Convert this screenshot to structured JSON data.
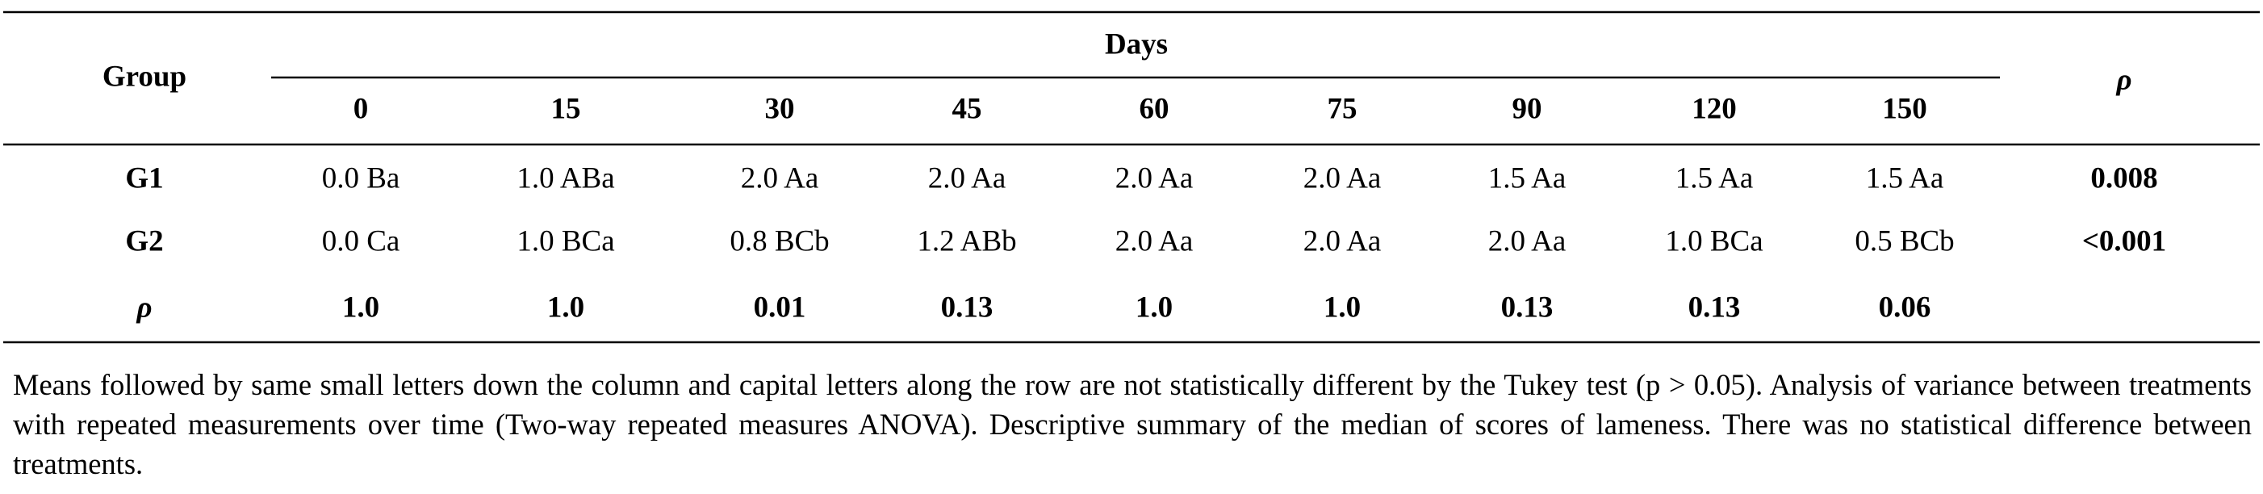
{
  "table": {
    "header": {
      "group": "Group",
      "days": "Days",
      "p": "ρ"
    },
    "columns": [
      "0",
      "15",
      "30",
      "45",
      "60",
      "75",
      "90",
      "120",
      "150"
    ],
    "rows": [
      {
        "label": "G1",
        "cells": [
          "0.0 Ba",
          "1.0 ABa",
          "2.0 Aa",
          "2.0 Aa",
          "2.0 Aa",
          "2.0 Aa",
          "1.5 Aa",
          "1.5 Aa",
          "1.5 Aa"
        ],
        "p": "0.008"
      },
      {
        "label": "G2",
        "cells": [
          "0.0 Ca",
          "1.0 BCa",
          "0.8 BCb",
          "1.2 ABb",
          "2.0 Aa",
          "2.0 Aa",
          "2.0 Aa",
          "1.0 BCa",
          "0.5 BCb"
        ],
        "p": "<0.001"
      },
      {
        "label": "ρ",
        "cells": [
          "1.0",
          "1.0",
          "0.01",
          "0.13",
          "1.0",
          "1.0",
          "0.13",
          "0.13",
          "0.06"
        ]
      }
    ]
  },
  "note": "Means followed by same small letters down the column and capital letters along the row are not statistically different by the Tukey test (p > 0.05). Analysis of variance between treatments with repeated measurements over time (Two-way repeated measures ANOVA). Descriptive summary of the median of scores of lameness. There was no statistical difference between treatments."
}
